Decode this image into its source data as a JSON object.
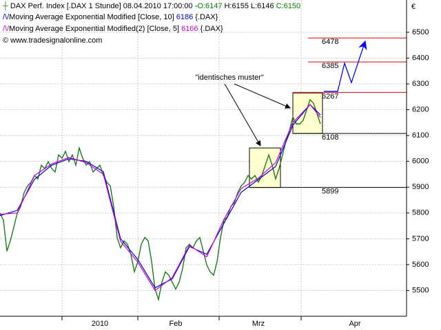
{
  "chart_data": {
    "type": "line",
    "header": {
      "date": "08.04.2010 17:00:00 -",
      "ohlc": [
        {
          "text": "O:6147",
          "color": "#008000"
        },
        {
          "text": "H:6155",
          "color": "#000000"
        },
        {
          "text": "L:6146",
          "color": "#000000"
        },
        {
          "text": "C:6150",
          "color": "#008000"
        }
      ]
    },
    "source_suffix": "{.DAX}",
    "copyright": "© www.tradesignalonline.com",
    "currency": "€",
    "annotation": "\"identisches muster\"",
    "series": [
      {
        "name": "DAX Perf. Index [.DAX  1 Stunde]",
        "color": "#1a7a1a",
        "x": [
          0,
          1,
          2,
          3,
          4,
          5,
          6,
          7,
          8,
          9,
          10,
          11,
          12,
          13,
          14,
          15,
          16,
          17,
          18,
          19,
          20,
          21,
          22,
          23,
          24,
          25,
          26,
          27,
          28,
          29,
          30,
          31,
          32,
          33,
          34,
          35,
          36,
          37,
          38,
          39,
          40,
          41,
          42,
          43,
          44,
          45,
          46,
          47,
          48,
          49,
          50,
          51,
          52,
          53,
          54,
          55,
          56,
          57,
          58,
          59,
          60,
          61,
          62,
          63,
          64,
          65,
          66,
          67,
          68,
          69,
          70,
          71,
          72,
          73,
          74,
          75,
          76,
          77,
          78,
          79,
          80,
          81,
          82,
          83,
          84,
          85,
          86,
          87,
          88,
          89,
          90,
          91,
          92,
          93
        ],
        "values": [
          5799,
          5772,
          5652,
          5692,
          5745,
          5799,
          5825,
          5879,
          5905,
          5919,
          5945,
          5932,
          5985,
          5972,
          5999,
          5972,
          5959,
          6025,
          6012,
          6039,
          5999,
          6025,
          5985,
          6052,
          6012,
          5985,
          5999,
          5959,
          5972,
          5985,
          5945,
          5919,
          5905,
          5825,
          5705,
          5665,
          5692,
          5679,
          5639,
          5572,
          5612,
          5679,
          5705,
          5692,
          5612,
          5505,
          5465,
          5532,
          5572,
          5559,
          5532,
          5505,
          5532,
          5585,
          5665,
          5679,
          5665,
          5692,
          5705,
          5652,
          5599,
          5572,
          5559,
          5612,
          5705,
          5772,
          5785,
          5825,
          5839,
          5879,
          5905,
          5919,
          5945,
          5932,
          5945,
          5919,
          5945,
          5985,
          6025,
          5985,
          5932,
          5972,
          6025,
          6079,
          6119,
          6172,
          6145,
          6145,
          6159,
          6199,
          6239,
          6225,
          6185,
          6145
        ]
      },
      {
        "name": "Moving Average Exponential Modified [Close, 10]",
        "color": "#0000cc",
        "last_value": 6186,
        "x": [
          0,
          5,
          10,
          15,
          20,
          25,
          30,
          35,
          40,
          45,
          50,
          55,
          60,
          65,
          70,
          75,
          80,
          85,
          90,
          93
        ],
        "values": [
          5790,
          5810,
          5930,
          5985,
          6010,
          6000,
          5960,
          5700,
          5620,
          5510,
          5545,
          5670,
          5640,
          5760,
          5880,
          5930,
          5980,
          6140,
          6220,
          6180
        ]
      },
      {
        "name": "Moving Average Exponential Modified(2) [Close, 5]",
        "color": "#cc00cc",
        "last_value": 6166,
        "x": [
          0,
          5,
          10,
          15,
          20,
          25,
          30,
          35,
          40,
          45,
          50,
          55,
          60,
          65,
          70,
          75,
          80,
          85,
          90,
          93
        ],
        "values": [
          5795,
          5800,
          5945,
          5990,
          6015,
          5995,
          5950,
          5690,
          5610,
          5500,
          5550,
          5675,
          5630,
          5775,
          5895,
          5935,
          5995,
          6150,
          6220,
          6170
        ]
      }
    ],
    "boxes": [
      {
        "x": [
          72.4,
          81.4
        ],
        "y": [
          5899,
          6052
        ]
      },
      {
        "x": [
          85,
          93.6
        ],
        "y": [
          6108,
          6265
        ]
      }
    ],
    "levels": [
      {
        "value": 6478,
        "from": 89.4,
        "color": "#e00000"
      },
      {
        "value": 6385,
        "from": 89.4,
        "color": "#e00000"
      },
      {
        "value": 6267,
        "from": 85,
        "color": "#e00000"
      },
      {
        "value": 6108,
        "from": 85,
        "color": "#000000"
      },
      {
        "value": 5899,
        "from": 72.4,
        "color": "#000000"
      }
    ],
    "projection": {
      "color": "#0000ff",
      "x": [
        94,
        98,
        100,
        102,
        106
      ],
      "values": [
        6271,
        6271,
        6380,
        6305,
        6465
      ]
    },
    "xlim": [
      0,
      118
    ],
    "xticks": [
      {
        "value": 29,
        "label": "2010"
      },
      {
        "value": 51,
        "label": "Feb"
      },
      {
        "value": 75,
        "label": "Mrz"
      },
      {
        "value": 103,
        "label": "Apr"
      }
    ],
    "ylim": [
      5400,
      6625
    ],
    "yticks": [
      5500,
      5600,
      5700,
      5800,
      5900,
      6000,
      6100,
      6200,
      6300,
      6400,
      6500
    ],
    "grid": true
  }
}
